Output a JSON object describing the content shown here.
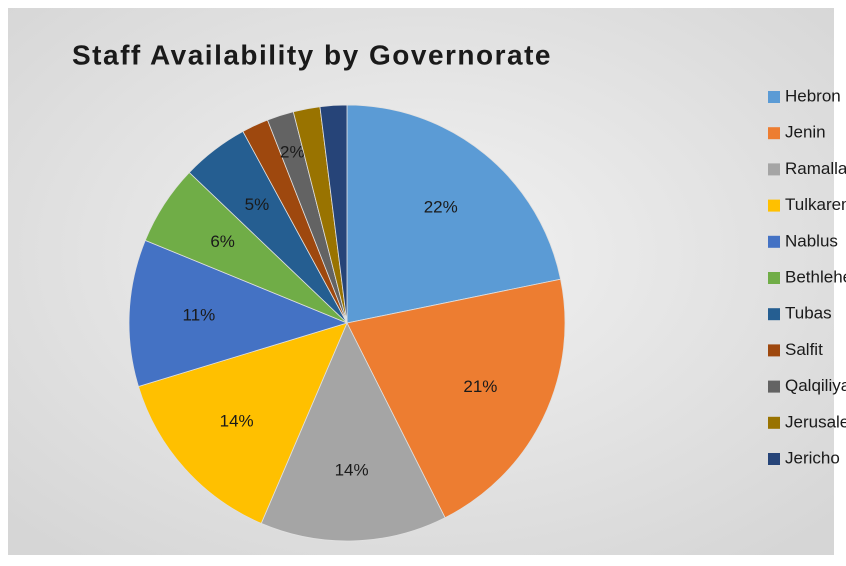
{
  "chart_data": {
    "type": "pie",
    "title": "Staff Availability by Governorate",
    "categories": [
      "Hebron",
      "Jenin",
      "Ramallah",
      "Tulkarem",
      "Nablus",
      "Bethlehem",
      "Tubas",
      "Salfit",
      "Qalqiliya",
      "Jerusalem",
      "Jericho"
    ],
    "values": [
      22,
      21,
      14,
      14,
      11,
      6,
      5,
      2,
      2,
      2,
      2
    ],
    "value_labels": [
      "22%",
      "21%",
      "14%",
      "14%",
      "11%",
      "6%",
      "5%",
      null,
      "2%",
      null,
      null
    ],
    "colors": [
      "#5b9bd5",
      "#ed7d31",
      "#a5a5a5",
      "#ffc000",
      "#4472c4",
      "#70ad47",
      "#255e91",
      "#9e480e",
      "#636363",
      "#997300",
      "#264478"
    ],
    "legend": "right"
  }
}
